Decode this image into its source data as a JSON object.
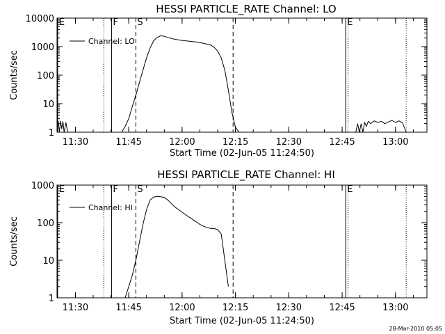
{
  "stamp": "28-Mar-2010 05:05",
  "chart_data": [
    {
      "type": "line",
      "title": "HESSI PARTICLE_RATE Channel: LO",
      "xlabel": "Start Time (02-Jun-05 11:24:50)",
      "ylabel": "Counts/sec",
      "yscale": "log",
      "xunit": "minutes after 11:24:50 (UT clock time)",
      "xlim": [
        "11:24:50",
        "13:08:50"
      ],
      "ylim": [
        1,
        10000
      ],
      "xticks": [
        "11:30",
        "11:45",
        "12:00",
        "12:15",
        "12:30",
        "12:45",
        "13:00"
      ],
      "xtick_times": [
        "11:30",
        "11:45",
        "12:00",
        "12:15",
        "12:30",
        "12:45",
        "13:00"
      ],
      "yticks": [
        "1",
        "10",
        "100",
        "1000",
        "10000"
      ],
      "ytick_values": [
        1,
        10,
        100,
        1000,
        10000
      ],
      "legend": {
        "entry": "Channel: LO",
        "position": "top-left"
      },
      "markers": [
        {
          "label": "E",
          "time": "11:25:00",
          "style": "solid"
        },
        {
          "label": "",
          "time": "11:38:00",
          "style": "dotted"
        },
        {
          "label": "F",
          "time": "11:40:10",
          "style": "solid"
        },
        {
          "label": "S",
          "time": "11:47:00",
          "style": "dashed"
        },
        {
          "label": "",
          "time": "12:14:20",
          "style": "dashed"
        },
        {
          "label": "E",
          "time": "12:46:00",
          "style": "solid"
        },
        {
          "label": "",
          "time": "12:46:40",
          "style": "dotted"
        },
        {
          "label": "",
          "time": "13:03:00",
          "style": "dotted"
        }
      ],
      "series": [
        {
          "name": "Channel: LO",
          "segments": [
            {
              "x": [
                "11:24:50",
                "11:25:10",
                "11:25:30",
                "11:25:50",
                "11:26:10",
                "11:26:30",
                "11:26:50",
                "11:27:20",
                "11:27:50",
                "11:28:20"
              ],
              "y": [
                1.2,
                2.5,
                1.0,
                2.5,
                1.3,
                2.4,
                1.0,
                2.2,
                1.0,
                1.0
              ]
            },
            {
              "x": [
                "11:43:00",
                "11:44:00",
                "11:45:00",
                "11:46:00",
                "11:47:00",
                "11:48:00",
                "11:49:00",
                "11:50:00",
                "11:51:00",
                "11:52:00",
                "11:53:00",
                "11:54:00",
                "11:55:00",
                "11:56:00",
                "11:58:00",
                "12:00:00",
                "12:02:00",
                "12:04:00",
                "12:06:00",
                "12:08:00",
                "12:09:00",
                "12:10:00",
                "12:11:00",
                "12:12:00",
                "12:13:00",
                "12:14:00",
                "12:15:00",
                "12:16:00"
              ],
              "y": [
                1.0,
                1.6,
                3.0,
                8.0,
                20,
                55,
                150,
                400,
                900,
                1600,
                2100,
                2400,
                2300,
                2100,
                1800,
                1650,
                1550,
                1450,
                1300,
                1150,
                950,
                700,
                400,
                150,
                30,
                5,
                1.5,
                1.0
              ]
            },
            {
              "x": [
                "12:48:50",
                "12:49:20",
                "12:49:50",
                "12:50:20",
                "12:50:50",
                "12:51:20",
                "12:51:50",
                "12:52:20",
                "12:53:00",
                "12:54:00",
                "12:55:00",
                "12:56:00",
                "12:57:00",
                "12:58:00",
                "12:59:00",
                "13:00:00",
                "13:01:00",
                "13:02:00",
                "13:03:00"
              ],
              "y": [
                1.0,
                2.0,
                1.0,
                2.0,
                1.0,
                2.2,
                1.6,
                2.4,
                2.0,
                2.5,
                2.2,
                2.4,
                2.0,
                2.3,
                2.6,
                2.2,
                2.5,
                2.1,
                1.0
              ]
            }
          ]
        }
      ]
    },
    {
      "type": "line",
      "title": "HESSI PARTICLE_RATE Channel: HI",
      "xlabel": "Start Time (02-Jun-05 11:24:50)",
      "ylabel": "Counts/sec",
      "yscale": "log",
      "xunit": "minutes after 11:24:50 (UT clock time)",
      "xlim": [
        "11:24:50",
        "13:08:50"
      ],
      "ylim": [
        1,
        1000
      ],
      "xticks": [
        "11:30",
        "11:45",
        "12:00",
        "12:15",
        "12:30",
        "12:45",
        "13:00"
      ],
      "xtick_times": [
        "11:30",
        "11:45",
        "12:00",
        "12:15",
        "12:30",
        "12:45",
        "13:00"
      ],
      "yticks": [
        "1",
        "10",
        "100",
        "1000"
      ],
      "ytick_values": [
        1,
        10,
        100,
        1000
      ],
      "legend": {
        "entry": "Channel: HI",
        "position": "top-left"
      },
      "markers": [
        {
          "label": "E",
          "time": "11:25:00",
          "style": "solid"
        },
        {
          "label": "",
          "time": "11:38:00",
          "style": "dotted"
        },
        {
          "label": "F",
          "time": "11:40:10",
          "style": "solid"
        },
        {
          "label": "S",
          "time": "11:47:00",
          "style": "dashed"
        },
        {
          "label": "",
          "time": "12:14:20",
          "style": "dashed"
        },
        {
          "label": "E",
          "time": "12:46:00",
          "style": "solid"
        },
        {
          "label": "",
          "time": "12:46:40",
          "style": "dotted"
        },
        {
          "label": "",
          "time": "13:03:00",
          "style": "dotted"
        }
      ],
      "series": [
        {
          "name": "Channel: HI",
          "segments": [
            {
              "x": [
                "11:44:00",
                "11:45:00",
                "11:46:00",
                "11:47:00",
                "11:48:00",
                "11:49:00",
                "11:50:00",
                "11:51:00",
                "11:52:00",
                "11:53:00",
                "11:54:00",
                "11:55:00",
                "11:56:00",
                "11:57:00",
                "11:58:00",
                "12:00:00",
                "12:02:00",
                "12:04:00",
                "12:05:00",
                "12:06:00",
                "12:07:00",
                "12:08:00",
                "12:09:00",
                "12:10:00",
                "12:11:00",
                "12:12:00",
                "12:13:00"
              ],
              "y": [
                1.0,
                2.0,
                4.0,
                10,
                30,
                90,
                220,
                400,
                480,
                500,
                490,
                470,
                400,
                320,
                260,
                190,
                140,
                105,
                90,
                80,
                75,
                70,
                70,
                65,
                50,
                10,
                2.0
              ]
            }
          ]
        }
      ]
    }
  ]
}
